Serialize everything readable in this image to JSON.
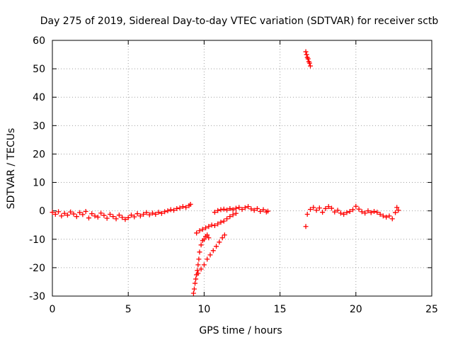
{
  "chart_data": {
    "type": "scatter",
    "title": "Day 275 of 2019, Sidereal Day-to-day VTEC variation (SDTVAR) for receiver sctb",
    "xlabel": "GPS time / hours",
    "ylabel": "SDTVAR / TECUs",
    "xlim": [
      0,
      25
    ],
    "ylim": [
      -30,
      60
    ],
    "xticks": [
      0,
      5,
      10,
      15,
      20,
      25
    ],
    "yticks": [
      -30,
      -20,
      -10,
      0,
      10,
      20,
      30,
      40,
      50,
      60
    ],
    "grid": true,
    "legend": "none",
    "marker": "+",
    "series_color": "#ff0000",
    "series": [
      {
        "name": "SDTVAR",
        "points": [
          [
            0.0,
            -0.5
          ],
          [
            0.2,
            -1.2
          ],
          [
            0.4,
            -0.3
          ],
          [
            0.6,
            -1.8
          ],
          [
            0.8,
            -0.9
          ],
          [
            1.0,
            -1.5
          ],
          [
            1.2,
            -0.4
          ],
          [
            1.4,
            -1.1
          ],
          [
            1.6,
            -2.0
          ],
          [
            1.8,
            -0.6
          ],
          [
            2.0,
            -1.3
          ],
          [
            2.2,
            -0.2
          ],
          [
            2.4,
            -2.5
          ],
          [
            2.6,
            -1.0
          ],
          [
            2.8,
            -1.8
          ],
          [
            3.0,
            -2.2
          ],
          [
            3.2,
            -0.8
          ],
          [
            3.4,
            -1.6
          ],
          [
            3.6,
            -2.6
          ],
          [
            3.8,
            -1.2
          ],
          [
            4.0,
            -2.0
          ],
          [
            4.2,
            -2.8
          ],
          [
            4.4,
            -1.5
          ],
          [
            4.6,
            -2.3
          ],
          [
            4.8,
            -3.0
          ],
          [
            5.0,
            -2.4
          ],
          [
            5.2,
            -1.5
          ],
          [
            5.4,
            -2.1
          ],
          [
            5.6,
            -1.0
          ],
          [
            5.8,
            -1.8
          ],
          [
            6.0,
            -1.2
          ],
          [
            6.2,
            -0.6
          ],
          [
            6.4,
            -1.4
          ],
          [
            6.6,
            -0.8
          ],
          [
            6.8,
            -1.2
          ],
          [
            7.0,
            -0.5
          ],
          [
            7.2,
            -0.9
          ],
          [
            7.4,
            -0.3
          ],
          [
            7.6,
            0.0
          ],
          [
            7.8,
            0.4
          ],
          [
            8.0,
            0.2
          ],
          [
            8.2,
            0.8
          ],
          [
            8.4,
            1.0
          ],
          [
            8.6,
            1.5
          ],
          [
            8.8,
            1.2
          ],
          [
            9.0,
            1.8
          ],
          [
            9.1,
            2.3
          ],
          [
            9.3,
            -29.0
          ],
          [
            9.35,
            -27.5
          ],
          [
            9.4,
            -25.5
          ],
          [
            9.45,
            -24.0
          ],
          [
            9.5,
            -22.5
          ],
          [
            9.55,
            -21.0
          ],
          [
            9.6,
            -19.0
          ],
          [
            9.65,
            -17.0
          ],
          [
            9.7,
            -14.5
          ],
          [
            9.8,
            -12.0
          ],
          [
            9.9,
            -10.5
          ],
          [
            10.0,
            -10.0
          ],
          [
            10.1,
            -9.0
          ],
          [
            10.2,
            -8.5
          ],
          [
            10.3,
            -9.5
          ],
          [
            9.5,
            -7.8
          ],
          [
            9.7,
            -7.0
          ],
          [
            9.9,
            -6.5
          ],
          [
            10.1,
            -6.0
          ],
          [
            10.3,
            -5.5
          ],
          [
            10.5,
            -5.0
          ],
          [
            10.7,
            -5.2
          ],
          [
            10.9,
            -4.6
          ],
          [
            11.1,
            -4.0
          ],
          [
            11.3,
            -3.6
          ],
          [
            11.5,
            -2.8
          ],
          [
            11.7,
            -2.0
          ],
          [
            11.9,
            -1.4
          ],
          [
            12.1,
            -0.9
          ],
          [
            9.6,
            -22.0
          ],
          [
            9.8,
            -20.5
          ],
          [
            10.0,
            -19.0
          ],
          [
            10.2,
            -17.0
          ],
          [
            10.4,
            -15.5
          ],
          [
            10.6,
            -14.0
          ],
          [
            10.8,
            -12.5
          ],
          [
            11.0,
            -11.0
          ],
          [
            11.2,
            -9.5
          ],
          [
            11.35,
            -8.5
          ],
          [
            10.7,
            -0.5
          ],
          [
            10.9,
            0.1
          ],
          [
            11.1,
            0.4
          ],
          [
            11.3,
            0.6
          ],
          [
            11.5,
            0.3
          ],
          [
            11.7,
            0.8
          ],
          [
            11.9,
            0.4
          ],
          [
            12.1,
            0.9
          ],
          [
            12.3,
            1.2
          ],
          [
            12.5,
            0.5
          ],
          [
            12.7,
            1.1
          ],
          [
            12.9,
            1.5
          ],
          [
            13.1,
            0.7
          ],
          [
            13.3,
            0.2
          ],
          [
            13.5,
            0.8
          ],
          [
            13.7,
            -0.2
          ],
          [
            13.9,
            0.4
          ],
          [
            14.1,
            -0.4
          ],
          [
            14.2,
            -0.1
          ],
          [
            16.7,
            56.0
          ],
          [
            16.75,
            55.0
          ],
          [
            16.8,
            54.0
          ],
          [
            16.85,
            53.5
          ],
          [
            16.9,
            52.5
          ],
          [
            16.95,
            52.0
          ],
          [
            17.0,
            51.0
          ],
          [
            16.7,
            -5.5
          ],
          [
            16.8,
            -1.2
          ],
          [
            17.0,
            0.5
          ],
          [
            17.2,
            1.2
          ],
          [
            17.4,
            0.2
          ],
          [
            17.6,
            1.0
          ],
          [
            17.8,
            -0.5
          ],
          [
            18.0,
            0.8
          ],
          [
            18.2,
            1.5
          ],
          [
            18.4,
            0.9
          ],
          [
            18.6,
            -0.4
          ],
          [
            18.8,
            0.2
          ],
          [
            19.0,
            -0.8
          ],
          [
            19.2,
            -1.2
          ],
          [
            19.4,
            -0.6
          ],
          [
            19.6,
            -0.2
          ],
          [
            19.8,
            0.4
          ],
          [
            20.0,
            1.6
          ],
          [
            20.2,
            0.6
          ],
          [
            20.4,
            -0.3
          ],
          [
            20.6,
            -0.8
          ],
          [
            20.8,
            0.0
          ],
          [
            21.0,
            -0.6
          ],
          [
            21.2,
            -0.2
          ],
          [
            21.4,
            -0.5
          ],
          [
            21.6,
            -1.2
          ],
          [
            21.8,
            -1.8
          ],
          [
            22.0,
            -2.2
          ],
          [
            22.2,
            -1.8
          ],
          [
            22.4,
            -2.8
          ],
          [
            22.6,
            -0.6
          ],
          [
            22.7,
            1.2
          ],
          [
            22.8,
            0.2
          ]
        ]
      }
    ]
  }
}
